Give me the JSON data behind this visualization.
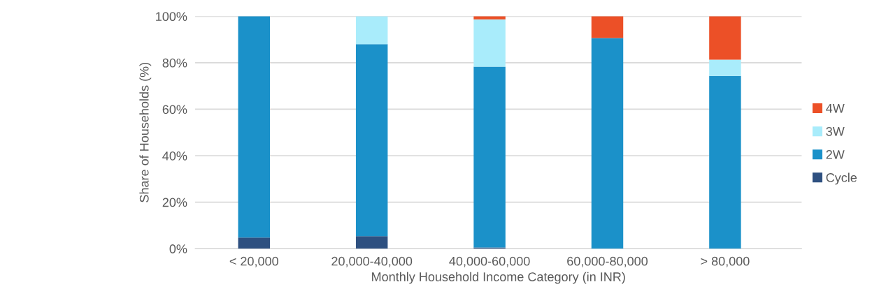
{
  "chart_data": {
    "type": "bar",
    "stacked": true,
    "xlabel": "Monthly Household Income Category (in INR)",
    "ylabel": "Share of Households (%)",
    "categories": [
      "< 20,000",
      "20,000-40,000",
      "40,000-60,000",
      "60,000-80,000",
      "> 80,000"
    ],
    "series": [
      {
        "name": "Cycle",
        "color": "#2e5080",
        "values": [
          4.8,
          5.4,
          0.5,
          0,
          0
        ]
      },
      {
        "name": "2W",
        "color": "#1b91c9",
        "values": [
          95.2,
          82.6,
          77.8,
          90.6,
          74.3
        ]
      },
      {
        "name": "3W",
        "color": "#a9ecfb",
        "values": [
          0,
          12,
          20.4,
          0,
          7
        ]
      },
      {
        "name": "4W",
        "color": "#ec5027",
        "values": [
          0,
          0,
          1.3,
          9.4,
          18.7
        ]
      }
    ],
    "ylim": [
      0,
      100
    ],
    "yticks": [
      {
        "value": 0,
        "label": "0%"
      },
      {
        "value": 20,
        "label": "20%"
      },
      {
        "value": 40,
        "label": "40%"
      },
      {
        "value": 60,
        "label": "60%"
      },
      {
        "value": 80,
        "label": "80%"
      },
      {
        "value": 100,
        "label": "100%"
      }
    ],
    "grid": "y",
    "legend": "right"
  }
}
